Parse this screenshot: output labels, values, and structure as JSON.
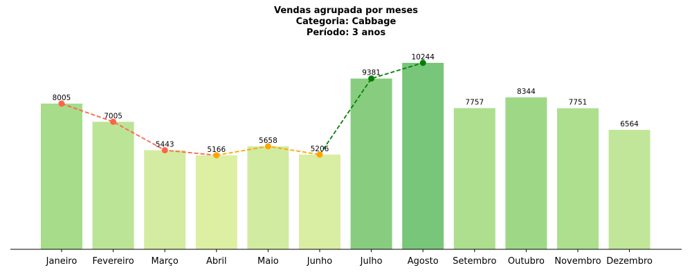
{
  "chart_data": {
    "type": "bar",
    "title": [
      "Vendas agrupada por meses",
      "Categoria: Cabbage",
      "Período: 3 anos"
    ],
    "xlabel": "",
    "ylabel": "",
    "ylim": [
      0,
      11500
    ],
    "categories": [
      "Janeiro",
      "Fevereiro",
      "Março",
      "Abril",
      "Maio",
      "Junho",
      "Julho",
      "Agosto",
      "Setembro",
      "Outubro",
      "Novembro",
      "Dezembro"
    ],
    "values": [
      8005,
      7005,
      5443,
      5166,
      5658,
      5206,
      9381,
      10244,
      7757,
      8344,
      7751,
      6564
    ],
    "bar_colors": [
      "#a6dc8a",
      "#bce497",
      "#d3eca1",
      "#dcefa3",
      "#d1eba0",
      "#d9eea2",
      "#88cd7f",
      "#78c679",
      "#addf8e",
      "#9ed886",
      "#addf8e",
      "#c2e699"
    ],
    "trend_segments": [
      {
        "from": 0,
        "to": 3,
        "color": "#ff6347"
      },
      {
        "from": 3,
        "to": 5,
        "color": "#ffa500"
      },
      {
        "from": 5,
        "to": 7,
        "color": "#008000"
      }
    ],
    "grid": false,
    "legend": "none"
  }
}
